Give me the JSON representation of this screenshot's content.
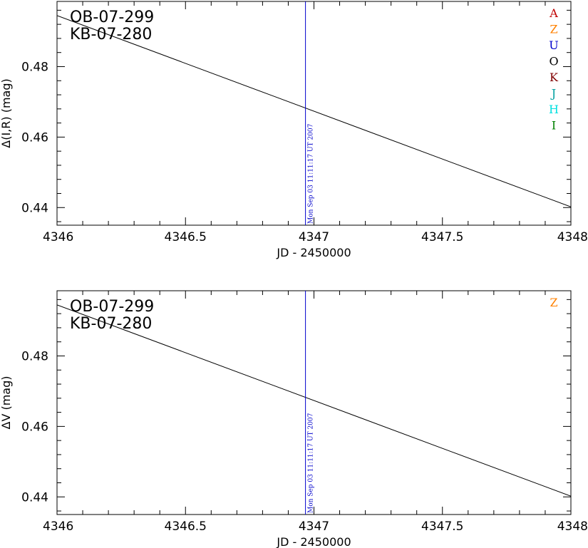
{
  "colors": {
    "A": "#c00000",
    "Z": "#ff8000",
    "U": "#0000cc",
    "O": "#000000",
    "K": "#800000",
    "J": "#00a0a0",
    "H": "#00e0e0",
    "I": "#008000",
    "marker": "#0000cc",
    "line": "#000000"
  },
  "chart_data": [
    {
      "type": "line",
      "panel_labels": [
        "OB-07-299",
        "KB-07-280"
      ],
      "xlabel": "JD - 2450000",
      "ylabel": "Δ(I,R) (mag)",
      "xlim": [
        4346,
        4348
      ],
      "ylim": [
        0.435,
        0.4985
      ],
      "xticks": [
        "4346",
        "4346.5",
        "4347",
        "4347.5",
        "4348"
      ],
      "yticks": [
        "0.44",
        "0.46",
        "0.48"
      ],
      "legend": [
        "A",
        "Z",
        "U",
        "O",
        "K",
        "J",
        "H",
        "I"
      ],
      "legend_position": "top-right",
      "series": [
        {
          "x": [
            4346,
            4348
          ],
          "y": [
            0.4945,
            0.4402
          ]
        }
      ],
      "marker": {
        "x": 4346.967,
        "label": "Mon Sep 03 11:11:17 UT 2007"
      }
    },
    {
      "type": "line",
      "panel_labels": [
        "OB-07-299",
        "KB-07-280"
      ],
      "xlabel": "JD - 2450000",
      "ylabel": "ΔV (mag)",
      "xlim": [
        4346,
        4348
      ],
      "ylim": [
        0.435,
        0.4985
      ],
      "xticks": [
        "4346",
        "4346.5",
        "4347",
        "4347.5",
        "4348"
      ],
      "yticks": [
        "0.44",
        "0.46",
        "0.48"
      ],
      "legend": [
        "Z"
      ],
      "legend_position": "top-right",
      "series": [
        {
          "x": [
            4346,
            4348
          ],
          "y": [
            0.4945,
            0.4402
          ]
        }
      ],
      "marker": {
        "x": 4346.967,
        "label": "Mon Sep 03 11:11:17 UT 2007"
      }
    }
  ]
}
